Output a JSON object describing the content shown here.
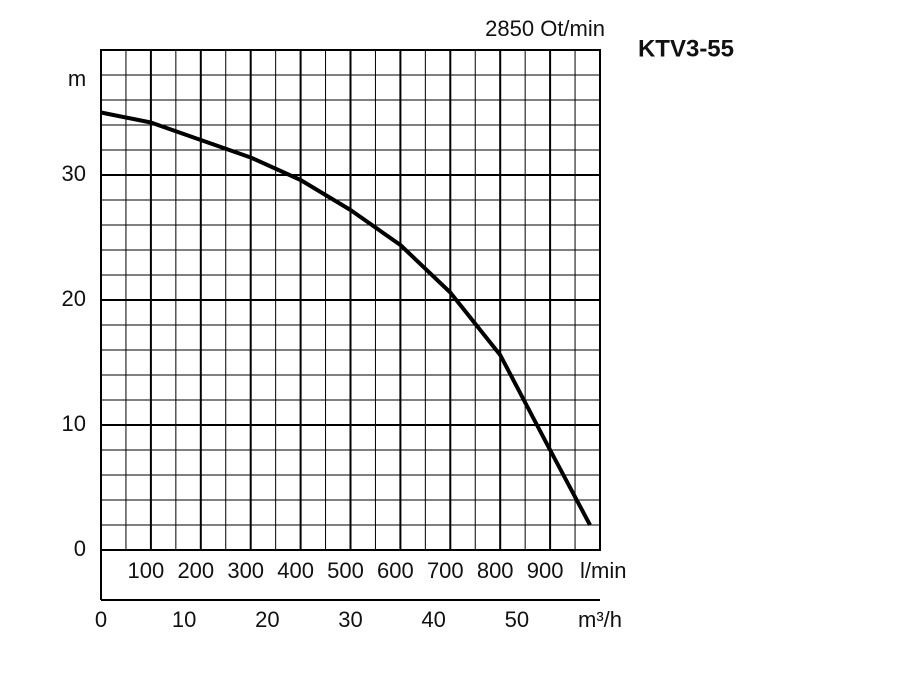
{
  "chart_data": {
    "type": "line",
    "title": "KTV3-55",
    "subtitle": "2850 Ot/min",
    "y_label": "m",
    "x_label": "l/min",
    "x2_label": "m³/h",
    "x": [
      0,
      100,
      200,
      300,
      400,
      500,
      600,
      700,
      800,
      900,
      980
    ],
    "values": [
      35,
      34.2,
      32.8,
      31.4,
      29.6,
      27.2,
      24.4,
      20.6,
      15.6,
      8,
      2
    ],
    "color": "#000000",
    "xlim": [
      0,
      1000
    ],
    "xticks": [
      100,
      200,
      300,
      400,
      500,
      600,
      700,
      800,
      900
    ],
    "x2lim": [
      0,
      60
    ],
    "x2ticks": [
      0,
      10,
      20,
      30,
      40,
      50
    ],
    "ylim": [
      0,
      40
    ],
    "yticks": [
      0,
      10,
      20,
      30
    ],
    "grid": true
  }
}
